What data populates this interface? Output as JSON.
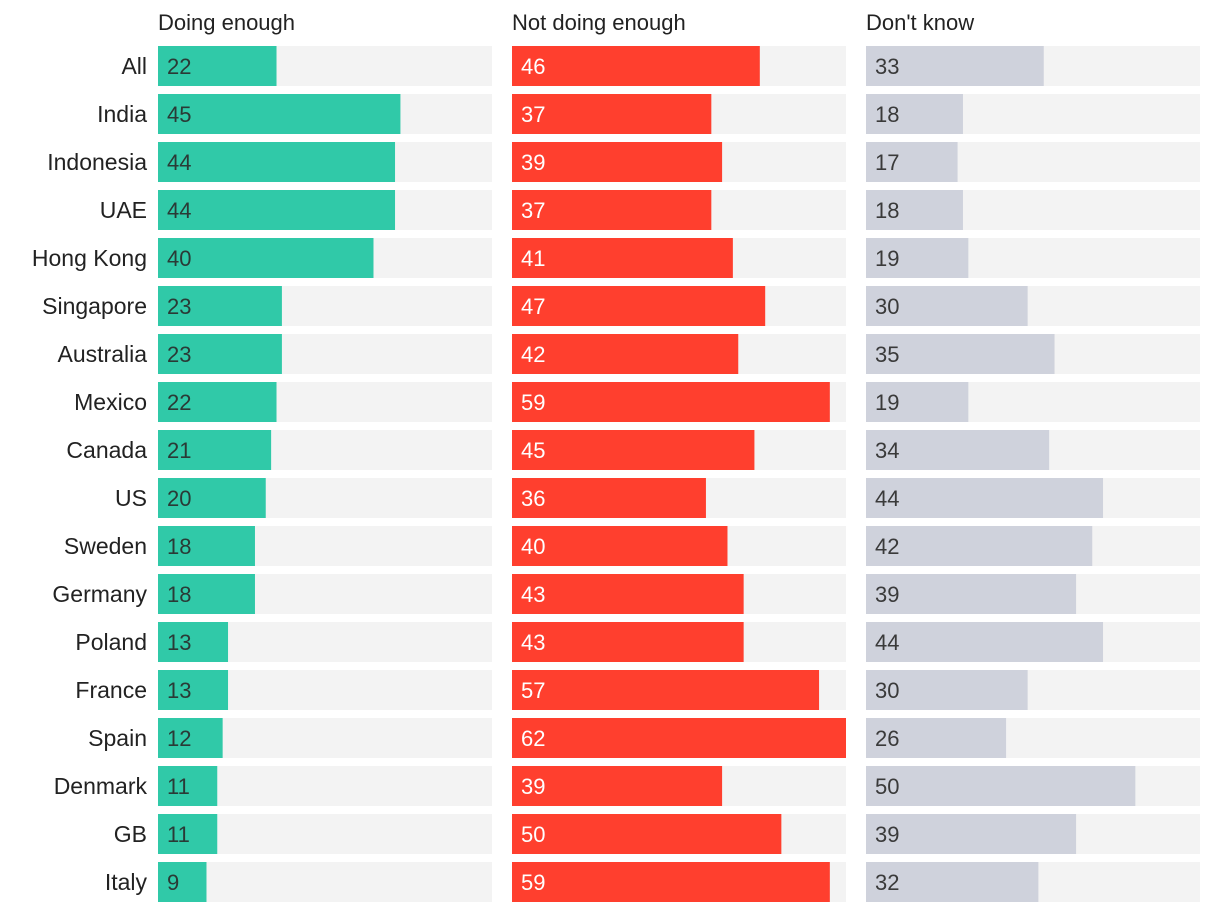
{
  "chart_data": {
    "type": "bar",
    "orientation": "horizontal",
    "layout": "small-multiples",
    "categories": [
      "All",
      "India",
      "Indonesia",
      "UAE",
      "Hong Kong",
      "Singapore",
      "Australia",
      "Mexico",
      "Canada",
      "US",
      "Sweden",
      "Germany",
      "Poland",
      "France",
      "Spain",
      "Denmark",
      "GB",
      "Italy"
    ],
    "series": [
      {
        "name": "Doing enough",
        "color": "#30c9a8",
        "label_color": "#2a3a36",
        "values": [
          22,
          45,
          44,
          44,
          40,
          23,
          23,
          22,
          21,
          20,
          18,
          18,
          13,
          13,
          12,
          11,
          11,
          9
        ]
      },
      {
        "name": "Not doing enough",
        "color": "#ff3f2e",
        "label_color": "#ffffff",
        "values": [
          46,
          37,
          39,
          37,
          41,
          47,
          42,
          59,
          45,
          36,
          40,
          43,
          43,
          57,
          62,
          39,
          50,
          59
        ]
      },
      {
        "name": "Don't know",
        "color": "#cfd2dc",
        "label_color": "#3a3a3a",
        "values": [
          33,
          18,
          17,
          18,
          19,
          30,
          35,
          19,
          34,
          44,
          42,
          39,
          44,
          30,
          26,
          50,
          39,
          32
        ]
      }
    ],
    "track_color": "#f3f3f3",
    "xlim": [
      0,
      62
    ],
    "grid": false,
    "legend": "column headers"
  }
}
